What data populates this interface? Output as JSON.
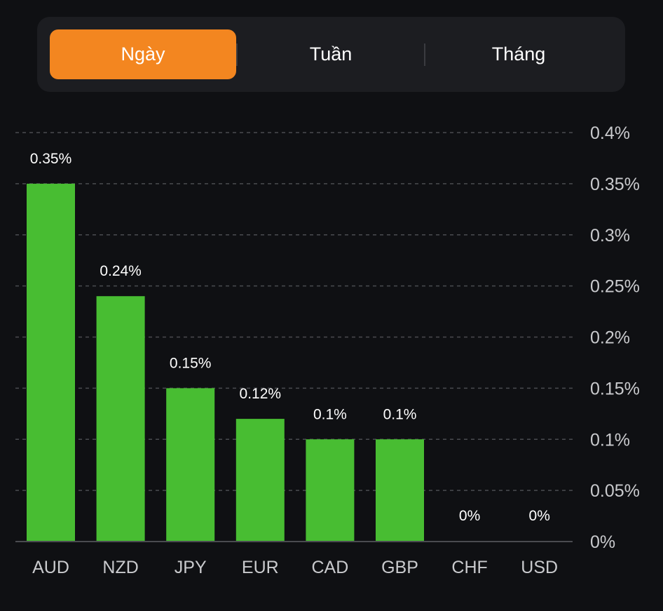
{
  "tabs": [
    {
      "label": "Ngày",
      "active": true
    },
    {
      "label": "Tuần",
      "active": false
    },
    {
      "label": "Tháng",
      "active": false
    }
  ],
  "colors": {
    "accent": "#f38620",
    "bar": "#48bd32",
    "background": "#0f1013",
    "panel": "#1c1d21"
  },
  "chart_data": {
    "type": "bar",
    "title": "",
    "xlabel": "",
    "ylabel": "",
    "categories": [
      "AUD",
      "NZD",
      "JPY",
      "EUR",
      "CAD",
      "GBP",
      "CHF",
      "USD"
    ],
    "values": [
      0.35,
      0.24,
      0.15,
      0.12,
      0.1,
      0.1,
      0,
      0
    ],
    "data_labels": [
      "0.35%",
      "0.24%",
      "0.15%",
      "0.12%",
      "0.1%",
      "0.1%",
      "0%",
      "0%"
    ],
    "ylim": [
      0,
      0.4
    ],
    "yticks": [
      0,
      0.05,
      0.1,
      0.15,
      0.2,
      0.25,
      0.3,
      0.35,
      0.4
    ],
    "ytick_labels": [
      "0%",
      "0.05%",
      "0.1%",
      "0.15%",
      "0.2%",
      "0.25%",
      "0.3%",
      "0.35%",
      "0.4%"
    ],
    "y_axis_position": "right",
    "grid": true,
    "unit": "%"
  }
}
